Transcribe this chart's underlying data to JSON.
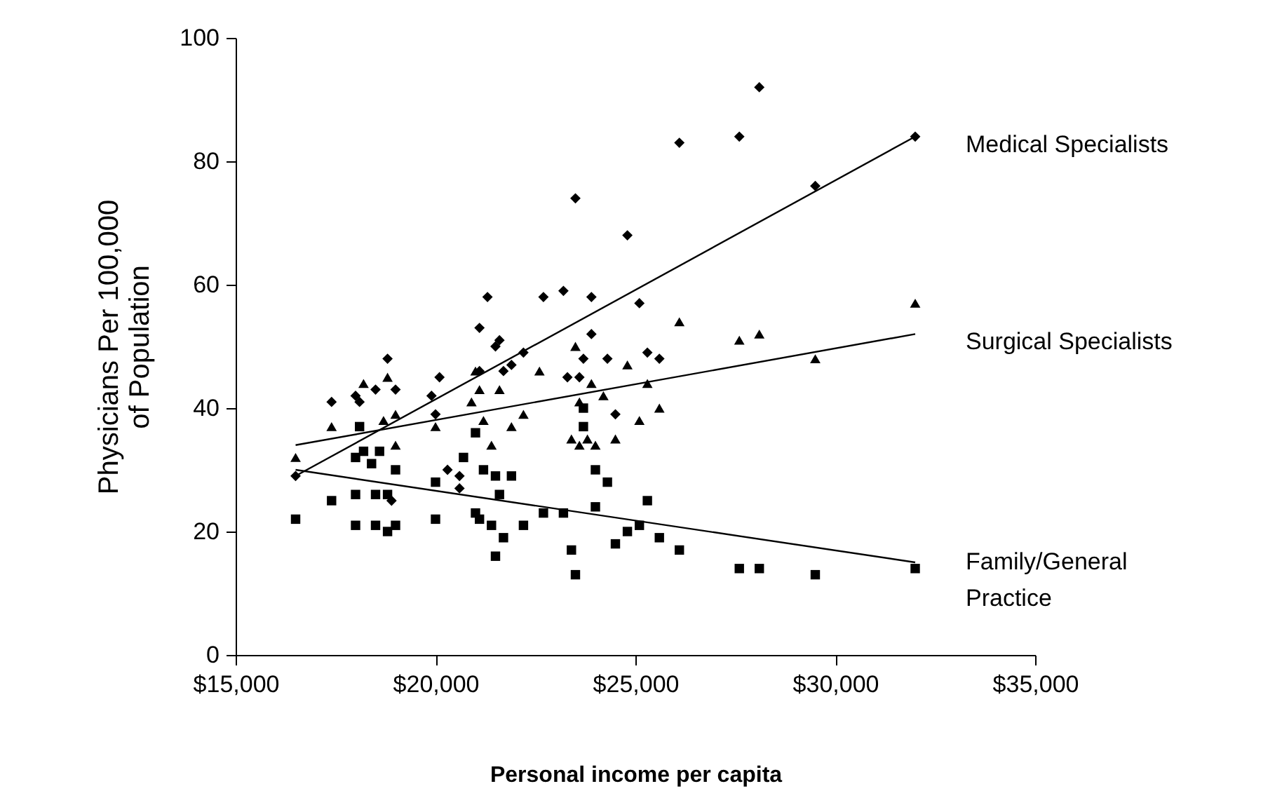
{
  "chart_data": {
    "type": "scatter",
    "xlabel": "Personal income per capita",
    "ylabel": "Physicians Per 100,000\nof Population",
    "xlim": [
      15000,
      35000
    ],
    "ylim": [
      0,
      100
    ],
    "xticks": [
      {
        "value": 15000,
        "label": "$15,000"
      },
      {
        "value": 20000,
        "label": "$20,000"
      },
      {
        "value": 25000,
        "label": "$25,000"
      },
      {
        "value": 30000,
        "label": "$30,000"
      },
      {
        "value": 35000,
        "label": "$35,000"
      }
    ],
    "yticks": [
      0,
      20,
      40,
      60,
      80,
      100
    ],
    "series": [
      {
        "type": "scatter",
        "marker": "diamond",
        "color": "#000000",
        "x": [
          16500,
          17400,
          18000,
          18100,
          18500,
          18800,
          19000,
          18900,
          19900,
          20000,
          20100,
          20300,
          20600,
          20600,
          21000,
          21100,
          21100,
          21300,
          21500,
          21600,
          21700,
          21900,
          22200,
          22700,
          23200,
          23300,
          23500,
          23600,
          23700,
          23900,
          23900,
          24300,
          24500,
          24800,
          25100,
          25300,
          25600,
          26100,
          27600,
          28100,
          29500,
          32000
        ],
        "values": [
          29,
          41,
          42,
          41,
          43,
          48,
          43,
          25,
          42,
          39,
          45,
          30,
          27,
          29,
          null,
          53,
          46,
          58,
          50,
          51,
          46,
          47,
          49,
          58,
          59,
          45,
          74,
          45,
          48,
          58,
          52,
          48,
          39,
          68,
          57,
          49,
          48,
          83,
          84,
          92,
          76,
          84
        ]
      },
      {
        "type": "scatter",
        "marker": "triangle",
        "color": "#000000",
        "x": [
          16500,
          17400,
          18200,
          18500,
          18700,
          18800,
          19000,
          19000,
          20000,
          20900,
          21000,
          21100,
          21200,
          21400,
          21600,
          21900,
          22200,
          22600,
          23400,
          23500,
          23600,
          23600,
          23800,
          23900,
          24000,
          24200,
          24500,
          24800,
          25100,
          25300,
          25600,
          26100,
          27600,
          28100,
          29500,
          32000
        ],
        "values": [
          32,
          37,
          44,
          null,
          38,
          45,
          39,
          34,
          37,
          41,
          46,
          43,
          38,
          34,
          43,
          37,
          39,
          46,
          35,
          50,
          41,
          34,
          35,
          44,
          34,
          42,
          35,
          47,
          38,
          44,
          40,
          54,
          51,
          52,
          48,
          57
        ]
      },
      {
        "type": "scatter",
        "marker": "square",
        "color": "#000000",
        "x": [
          16500,
          17400,
          18000,
          18000,
          18000,
          18100,
          18200,
          18400,
          18500,
          18500,
          18600,
          18800,
          18800,
          19000,
          19000,
          20000,
          20000,
          20700,
          21000,
          21000,
          21100,
          21200,
          21400,
          21500,
          21500,
          21600,
          21700,
          21900,
          22200,
          22700,
          23200,
          23400,
          23500,
          23700,
          23700,
          24000,
          24000,
          24300,
          24500,
          24800,
          25100,
          25300,
          25600,
          26100,
          27600,
          28100,
          29500,
          32000
        ],
        "values": [
          22,
          25,
          26,
          21,
          32,
          37,
          33,
          31,
          21,
          26,
          33,
          20,
          26,
          30,
          21,
          22,
          28,
          32,
          36,
          23,
          22,
          30,
          21,
          16,
          29,
          26,
          19,
          29,
          21,
          23,
          23,
          17,
          13,
          37,
          40,
          30,
          24,
          28,
          18,
          20,
          21,
          25,
          19,
          17,
          14,
          14,
          13,
          14
        ]
      },
      {
        "type": "line",
        "name": "Medical Specialists",
        "color": "#000000",
        "x": [
          16500,
          32000
        ],
        "values": [
          29,
          84
        ]
      },
      {
        "type": "line",
        "name": "Surgical Specialists",
        "color": "#000000",
        "x": [
          16500,
          32000
        ],
        "values": [
          34,
          52
        ]
      },
      {
        "type": "line",
        "name": "Family/General Practice",
        "color": "#000000",
        "x": [
          16500,
          32000
        ],
        "values": [
          30,
          15
        ]
      }
    ]
  }
}
